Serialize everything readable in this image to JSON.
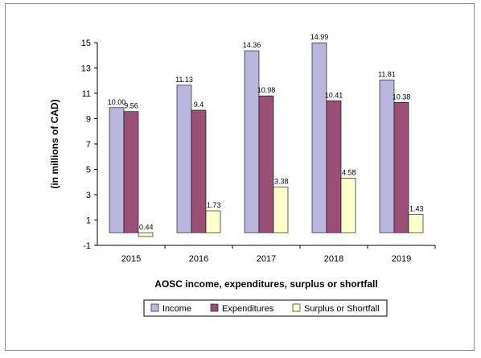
{
  "chart_data": {
    "type": "bar",
    "title": "",
    "xlabel": "AOSC income, expenditures, surplus or shortfall",
    "ylabel": "(in millions of CAD)",
    "categories": [
      "2015",
      "2016",
      "2017",
      "2018",
      "2019"
    ],
    "ylim": [
      -1,
      15
    ],
    "yticks": [
      -1,
      1,
      3,
      5,
      7,
      9,
      11,
      13,
      15
    ],
    "grid": false,
    "legend": "bottom",
    "series": [
      {
        "name": "Income",
        "color": "#b9b7de",
        "values": [
          10.0,
          11.13,
          14.36,
          14.99,
          11.81
        ],
        "labels": [
          "10.00",
          "11.13",
          "14.36",
          "14.99",
          "11.81"
        ],
        "display_values": [
          9.87,
          11.64,
          14.36,
          14.99,
          12.05
        ]
      },
      {
        "name": "Expenditures",
        "color": "#9b4f77",
        "values": [
          9.56,
          9.4,
          10.98,
          10.41,
          10.38
        ],
        "labels": [
          "9.56",
          "9.4",
          "10.98",
          "10.41",
          "10.38"
        ],
        "display_values": [
          9.56,
          9.67,
          10.8,
          10.41,
          10.28
        ]
      },
      {
        "name": "Surplus or Shortfall",
        "color": "#ffffcc",
        "values": [
          0.44,
          1.73,
          3.38,
          4.58,
          1.43
        ],
        "labels": [
          "0.44",
          "1.73",
          "3.38",
          "4.58",
          "1.43"
        ],
        "display_values": [
          -0.3,
          1.73,
          3.6,
          4.3,
          1.43
        ]
      }
    ]
  }
}
